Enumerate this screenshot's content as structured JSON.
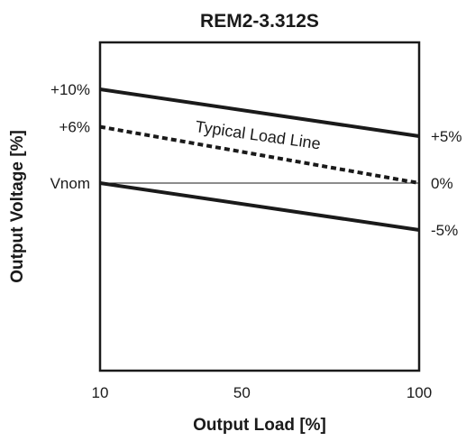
{
  "chart_data": {
    "type": "line",
    "title": "REM2-3.312S",
    "xlabel": "Output Load [%]",
    "ylabel": "Output Voltage [%]",
    "x_ticks": [
      "10",
      "50",
      "100"
    ],
    "xlim": [
      10,
      100
    ],
    "left_tick_labels": [
      {
        "label": "+10%",
        "value": 10
      },
      {
        "label": "+6%",
        "value": 6
      },
      {
        "label": "Vnom",
        "value": 0
      }
    ],
    "right_tick_labels": [
      {
        "label": "+5%",
        "value": 5
      },
      {
        "label": "0%",
        "value": 0
      },
      {
        "label": "-5%",
        "value": -5
      }
    ],
    "ylim": [
      -20,
      15
    ],
    "grid": false,
    "series": [
      {
        "style": "solid",
        "points": [
          [
            10,
            10
          ],
          [
            100,
            5
          ]
        ]
      },
      {
        "style": "dashed",
        "points": [
          [
            10,
            6
          ],
          [
            100,
            0
          ]
        ]
      },
      {
        "style": "thin-solid",
        "points": [
          [
            10,
            0
          ],
          [
            100,
            0
          ]
        ]
      },
      {
        "style": "solid",
        "points": [
          [
            10,
            0
          ],
          [
            100,
            -5
          ]
        ]
      }
    ],
    "annotations": [
      {
        "text": "Typical Load Line"
      }
    ]
  }
}
